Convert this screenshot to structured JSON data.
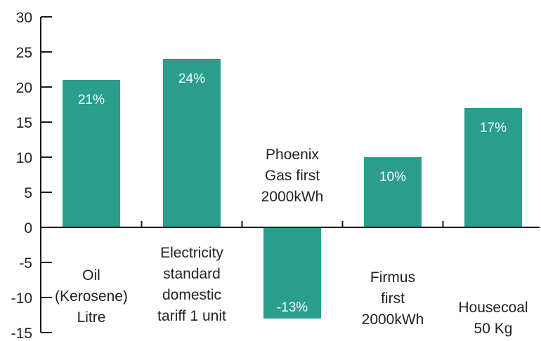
{
  "chart_data": {
    "type": "bar",
    "categories": [
      [
        "Oil",
        "(Kerosene)",
        "Litre"
      ],
      [
        "Electricity",
        "standard",
        "domestic",
        "tariff 1 unit"
      ],
      [
        "Phoenix",
        "Gas first",
        "2000kWh"
      ],
      [
        "Firmus",
        "first",
        "2000kWh"
      ],
      [
        "Housecoal",
        "50 Kg"
      ]
    ],
    "values": [
      21,
      24,
      -13,
      10,
      17
    ],
    "data_labels": [
      "21%",
      "24%",
      "-13%",
      "10%",
      "17%"
    ],
    "yticks": [
      "30",
      "25",
      "20",
      "15",
      "10",
      "5",
      "0",
      "-5",
      "-10",
      "-15"
    ],
    "ylim": [
      -15,
      30
    ],
    "title": "",
    "xlabel": "",
    "ylabel": "",
    "bar_color": "#2a9d8f",
    "grid": false,
    "legend": "none"
  }
}
